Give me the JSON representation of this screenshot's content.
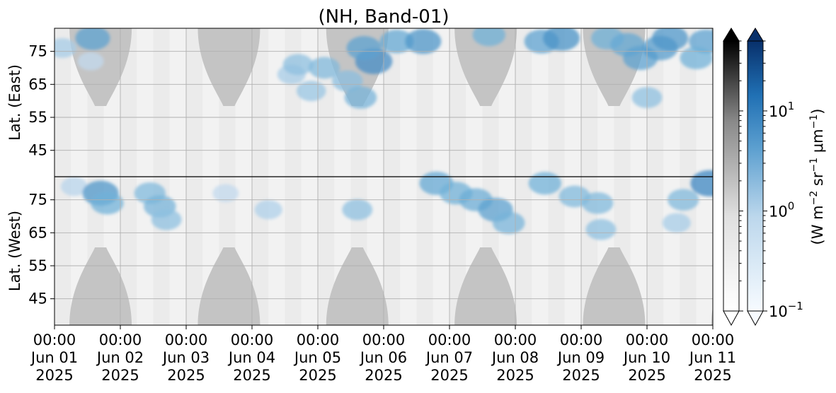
{
  "chart_data": {
    "type": "heatmap",
    "title": "(NH, Band-01)",
    "panels": [
      {
        "name": "east",
        "ylabel": "Lat. (East)",
        "yticks": [
          45,
          55,
          65,
          75
        ],
        "ylim": [
          37,
          82
        ],
        "orientation": "normal"
      },
      {
        "name": "west",
        "ylabel": "Lat. (West)",
        "yticks": [
          75,
          65,
          55,
          45
        ],
        "ylim": [
          82,
          37
        ],
        "orientation": "inverted"
      }
    ],
    "x_ticks": [
      {
        "time": "00:00",
        "date": "Jun 01",
        "year": "2025"
      },
      {
        "time": "00:00",
        "date": "Jun 02",
        "year": "2025"
      },
      {
        "time": "00:00",
        "date": "Jun 03",
        "year": "2025"
      },
      {
        "time": "00:00",
        "date": "Jun 04",
        "year": "2025"
      },
      {
        "time": "00:00",
        "date": "Jun 05",
        "year": "2025"
      },
      {
        "time": "00:00",
        "date": "Jun 06",
        "year": "2025"
      },
      {
        "time": "00:00",
        "date": "Jun 07",
        "year": "2025"
      },
      {
        "time": "00:00",
        "date": "Jun 08",
        "year": "2025"
      },
      {
        "time": "00:00",
        "date": "Jun 09",
        "year": "2025"
      },
      {
        "time": "00:00",
        "date": "Jun 10",
        "year": "2025"
      },
      {
        "time": "00:00",
        "date": "Jun 11",
        "year": "2025"
      }
    ],
    "xlim": [
      "2025-06-01 00:00",
      "2025-06-11 00:00"
    ],
    "grid": true,
    "colorbars": [
      {
        "name": "grayscale",
        "colormap": "Greys",
        "scale": "log",
        "range": [
          0.1,
          50
        ],
        "extend": "both"
      },
      {
        "name": "blue",
        "colormap": "Blues",
        "scale": "log",
        "range": [
          0.1,
          50
        ],
        "extend": "both"
      }
    ],
    "colorbar_ticks": [
      {
        "base": "10",
        "exp": "1",
        "value": 10
      },
      {
        "base": "10",
        "exp": "0",
        "value": 1
      },
      {
        "base": "10",
        "exp": "−1",
        "value": 0.1
      }
    ],
    "colorbar_label": {
      "prefix": "(W m",
      "e1": "−2",
      "mid1": " sr",
      "e2": "−1",
      "mid2": " μm",
      "e3": "−1",
      "suffix": ")"
    },
    "masked_region_color": "#c4c4c4",
    "masked_peak_days": [
      0.7,
      2.65,
      4.6,
      6.55,
      8.5,
      10.45
    ],
    "radiance_blobs": [
      {
        "day": 0.12,
        "lat": 76,
        "panel": "east",
        "value": 0.8
      },
      {
        "day": 0.3,
        "lat": 79,
        "panel": "west",
        "value": 0.6
      },
      {
        "day": 0.55,
        "lat": 72,
        "panel": "east",
        "value": 0.5
      },
      {
        "day": 0.58,
        "lat": 79,
        "panel": "east",
        "value": 3.0
      },
      {
        "day": 0.7,
        "lat": 77,
        "panel": "west",
        "value": 4.0
      },
      {
        "day": 0.8,
        "lat": 74,
        "panel": "west",
        "value": 2.0
      },
      {
        "day": 1.45,
        "lat": 77,
        "panel": "west",
        "value": 1.5
      },
      {
        "day": 1.6,
        "lat": 73,
        "panel": "west",
        "value": 1.8
      },
      {
        "day": 1.7,
        "lat": 69,
        "panel": "west",
        "value": 1.2
      },
      {
        "day": 2.6,
        "lat": 77,
        "panel": "west",
        "value": 0.5
      },
      {
        "day": 3.25,
        "lat": 72,
        "panel": "west",
        "value": 0.7
      },
      {
        "day": 3.6,
        "lat": 68,
        "panel": "east",
        "value": 0.8
      },
      {
        "day": 3.7,
        "lat": 71,
        "panel": "east",
        "value": 1.2
      },
      {
        "day": 3.9,
        "lat": 63,
        "panel": "east",
        "value": 1.0
      },
      {
        "day": 4.1,
        "lat": 70,
        "panel": "east",
        "value": 1.5
      },
      {
        "day": 4.45,
        "lat": 66,
        "panel": "east",
        "value": 1.3
      },
      {
        "day": 4.65,
        "lat": 61,
        "panel": "east",
        "value": 1.8
      },
      {
        "day": 4.85,
        "lat": 72,
        "panel": "east",
        "value": 5.0
      },
      {
        "day": 4.7,
        "lat": 76,
        "panel": "east",
        "value": 3.0
      },
      {
        "day": 5.2,
        "lat": 78,
        "panel": "east",
        "value": 2.5
      },
      {
        "day": 4.6,
        "lat": 72,
        "panel": "west",
        "value": 1.2
      },
      {
        "day": 5.6,
        "lat": 78,
        "panel": "east",
        "value": 4.0
      },
      {
        "day": 5.8,
        "lat": 80,
        "panel": "west",
        "value": 2.5
      },
      {
        "day": 6.1,
        "lat": 77,
        "panel": "west",
        "value": 2.0
      },
      {
        "day": 6.4,
        "lat": 75,
        "panel": "west",
        "value": 2.2
      },
      {
        "day": 6.7,
        "lat": 72,
        "panel": "west",
        "value": 3.0
      },
      {
        "day": 6.9,
        "lat": 68,
        "panel": "west",
        "value": 1.8
      },
      {
        "day": 6.6,
        "lat": 80,
        "panel": "east",
        "value": 2.0
      },
      {
        "day": 7.4,
        "lat": 78,
        "panel": "east",
        "value": 3.0
      },
      {
        "day": 7.7,
        "lat": 79,
        "panel": "east",
        "value": 4.5
      },
      {
        "day": 7.45,
        "lat": 80,
        "panel": "west",
        "value": 2.0
      },
      {
        "day": 7.9,
        "lat": 76,
        "panel": "west",
        "value": 1.5
      },
      {
        "day": 8.25,
        "lat": 74,
        "panel": "west",
        "value": 1.5
      },
      {
        "day": 8.3,
        "lat": 66,
        "panel": "west",
        "value": 1.2
      },
      {
        "day": 8.4,
        "lat": 79,
        "panel": "east",
        "value": 2.0
      },
      {
        "day": 8.7,
        "lat": 77,
        "panel": "east",
        "value": 2.5
      },
      {
        "day": 8.9,
        "lat": 73,
        "panel": "east",
        "value": 3.0
      },
      {
        "day": 9.2,
        "lat": 76,
        "panel": "east",
        "value": 3.5
      },
      {
        "day": 9.35,
        "lat": 79,
        "panel": "east",
        "value": 4.0
      },
      {
        "day": 9.0,
        "lat": 61,
        "panel": "east",
        "value": 1.2
      },
      {
        "day": 9.45,
        "lat": 68,
        "panel": "west",
        "value": 0.8
      },
      {
        "day": 9.55,
        "lat": 75,
        "panel": "west",
        "value": 1.5
      },
      {
        "day": 9.9,
        "lat": 78,
        "panel": "east",
        "value": 3.0
      },
      {
        "day": 9.95,
        "lat": 80,
        "panel": "west",
        "value": 6.0
      },
      {
        "day": 9.75,
        "lat": 73,
        "panel": "east",
        "value": 2.0
      }
    ]
  }
}
